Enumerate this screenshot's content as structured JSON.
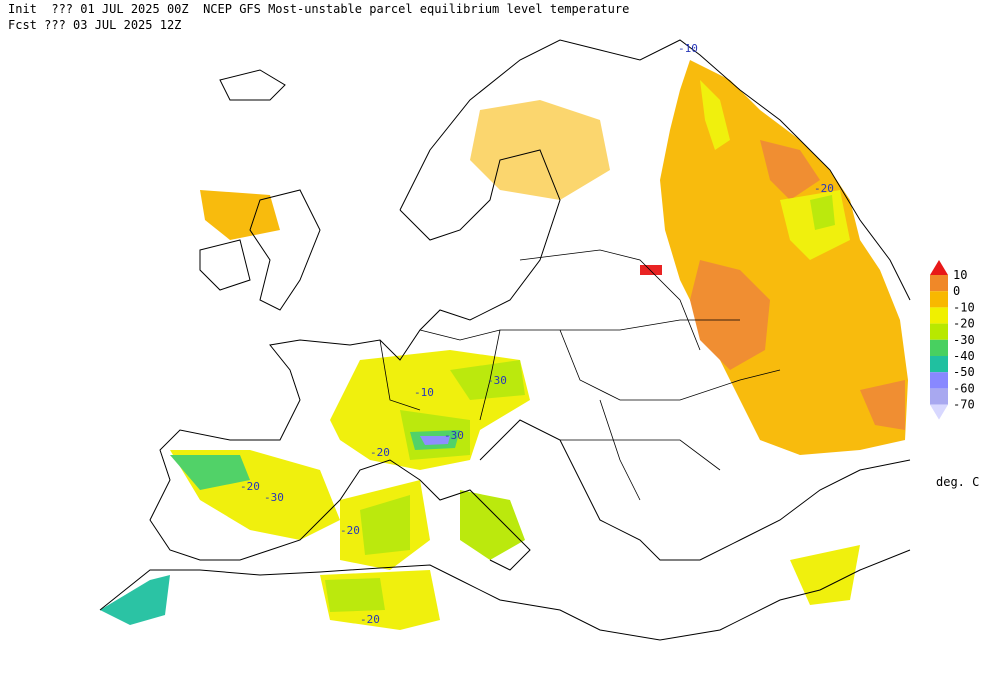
{
  "header": {
    "line1": "Init  ??? 01 JUL 2025 00Z  NCEP GFS Most-unstable parcel equilibrium level temperature",
    "line2": "Fcst ??? 03 JUL 2025 12Z"
  },
  "legend": {
    "labels": [
      10,
      0,
      -10,
      -20,
      -30,
      -40,
      -50,
      -60,
      -70
    ],
    "colors": [
      "#e81818",
      "#f08828",
      "#f8b800",
      "#f0f000",
      "#b8e800",
      "#48d060",
      "#20c0a0",
      "#8888ff",
      "#a8a8f0",
      "#d8d8ff"
    ],
    "unit": "deg. C"
  },
  "map_labels": [
    -10,
    -20,
    -30,
    -10,
    -30,
    -20,
    -20,
    -30,
    -20,
    -20
  ]
}
